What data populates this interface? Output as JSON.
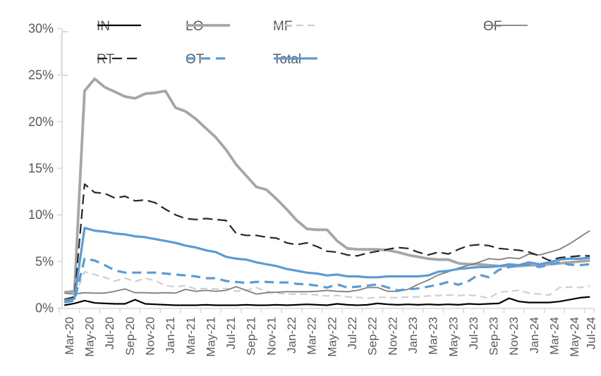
{
  "chart_data": {
    "type": "line",
    "title": "",
    "xlabel": "",
    "ylabel": "",
    "ylim": [
      0,
      30
    ],
    "grid": false,
    "legend_position": "top",
    "axis_color": "#d9d9d9",
    "label_color": "#595959",
    "y_ticks": [
      "0%",
      "5%",
      "10%",
      "15%",
      "20%",
      "25%",
      "30%"
    ],
    "x_tick_labels": [
      "Mar-20",
      "May-20",
      "Jul-20",
      "Sep-20",
      "Nov-20",
      "Jan-21",
      "Mar-21",
      "May-21",
      "Jul-21",
      "Sep-21",
      "Nov-21",
      "Jan-22",
      "Mar-22",
      "May-22",
      "Jul-22",
      "Sep-22",
      "Nov-22",
      "Jan-23",
      "Mar-23",
      "May-23",
      "Jul-23",
      "Sep-23",
      "Nov-23",
      "Jan-24",
      "Mar-24",
      "May-24",
      "Jul-24"
    ],
    "x": [
      "Mar-20",
      "Apr-20",
      "May-20",
      "Jun-20",
      "Jul-20",
      "Aug-20",
      "Sep-20",
      "Oct-20",
      "Nov-20",
      "Dec-20",
      "Jan-21",
      "Feb-21",
      "Mar-21",
      "Apr-21",
      "May-21",
      "Jun-21",
      "Jul-21",
      "Aug-21",
      "Sep-21",
      "Oct-21",
      "Nov-21",
      "Dec-21",
      "Jan-22",
      "Feb-22",
      "Mar-22",
      "Apr-22",
      "May-22",
      "Jun-22",
      "Jul-22",
      "Aug-22",
      "Sep-22",
      "Oct-22",
      "Nov-22",
      "Dec-22",
      "Jan-23",
      "Feb-23",
      "Mar-23",
      "Apr-23",
      "May-23",
      "Jun-23",
      "Jul-23",
      "Aug-23",
      "Sep-23",
      "Oct-23",
      "Nov-23",
      "Dec-23",
      "Jan-24",
      "Feb-24",
      "Mar-24",
      "Apr-24",
      "May-24",
      "Jun-24",
      "Jul-24"
    ],
    "series": [
      {
        "name": "IN",
        "color": "#000000",
        "style": "solid",
        "width": 2.2,
        "dash": "",
        "values": [
          0.3,
          0.5,
          0.8,
          0.55,
          0.5,
          0.45,
          0.45,
          0.9,
          0.45,
          0.4,
          0.35,
          0.3,
          0.3,
          0.3,
          0.35,
          0.3,
          0.3,
          0.3,
          0.35,
          0.3,
          0.3,
          0.35,
          0.3,
          0.35,
          0.4,
          0.35,
          0.3,
          0.45,
          0.35,
          0.3,
          0.35,
          0.5,
          0.4,
          0.35,
          0.4,
          0.35,
          0.4,
          0.35,
          0.4,
          0.35,
          0.45,
          0.4,
          0.45,
          0.5,
          1.05,
          0.7,
          0.6,
          0.6,
          0.6,
          0.7,
          0.9,
          1.1,
          1.2
        ]
      },
      {
        "name": "LO",
        "color": "#a6a6a6",
        "style": "solid",
        "width": 3.8,
        "dash": "",
        "values": [
          1.7,
          1.8,
          23.3,
          24.6,
          23.7,
          23.2,
          22.7,
          22.5,
          23.0,
          23.1,
          23.3,
          21.5,
          21.1,
          20.3,
          19.3,
          18.3,
          17.0,
          15.4,
          14.2,
          13.0,
          12.7,
          11.7,
          10.6,
          9.4,
          8.5,
          8.4,
          8.4,
          7.2,
          6.4,
          6.3,
          6.3,
          6.3,
          6.2,
          6.0,
          5.7,
          5.5,
          5.3,
          5.2,
          5.2,
          4.8,
          4.7,
          4.7,
          4.6,
          4.5,
          4.5,
          4.5,
          4.6,
          4.6,
          4.7,
          4.8,
          4.9,
          5.0,
          5.1
        ]
      },
      {
        "name": "MF",
        "color": "#cfcfcf",
        "style": "dashed",
        "width": 2.2,
        "dash": "10 6",
        "values": [
          1.0,
          1.2,
          3.9,
          3.6,
          3.3,
          2.9,
          3.2,
          2.85,
          3.2,
          2.95,
          2.4,
          2.3,
          2.4,
          2.05,
          2.1,
          2.05,
          2.1,
          1.8,
          1.9,
          2.2,
          1.8,
          1.6,
          1.5,
          1.5,
          1.5,
          1.4,
          1.3,
          1.35,
          1.2,
          1.15,
          1.05,
          1.15,
          1.15,
          1.1,
          1.2,
          1.2,
          1.3,
          1.35,
          1.4,
          1.35,
          1.4,
          1.3,
          1.05,
          1.7,
          1.8,
          1.9,
          1.6,
          1.5,
          1.4,
          2.2,
          2.25,
          2.2,
          2.35
        ]
      },
      {
        "name": "OF",
        "color": "#7f7f7f",
        "style": "solid",
        "width": 1.8,
        "dash": "",
        "values": [
          1.6,
          1.5,
          1.65,
          1.6,
          1.6,
          1.8,
          2.05,
          1.65,
          1.65,
          1.6,
          1.65,
          1.6,
          2.0,
          1.8,
          1.9,
          1.8,
          1.9,
          2.3,
          1.9,
          1.5,
          1.65,
          1.7,
          1.75,
          1.75,
          1.75,
          1.8,
          1.9,
          1.8,
          1.75,
          1.9,
          2.2,
          2.2,
          1.8,
          1.8,
          2.0,
          2.55,
          3.0,
          3.55,
          3.9,
          4.3,
          4.6,
          4.9,
          5.3,
          5.2,
          5.4,
          5.3,
          5.8,
          5.7,
          6.0,
          6.3,
          6.9,
          7.6,
          8.3
        ]
      },
      {
        "name": "RT",
        "color": "#262626",
        "style": "dashed",
        "width": 2.2,
        "dash": "14 7",
        "values": [
          0.9,
          1.2,
          13.3,
          12.4,
          12.3,
          11.8,
          12.0,
          11.5,
          11.6,
          11.3,
          10.6,
          10.0,
          9.6,
          9.5,
          9.6,
          9.5,
          9.4,
          8.0,
          7.8,
          7.8,
          7.6,
          7.5,
          7.0,
          6.8,
          7.0,
          6.6,
          6.1,
          6.0,
          5.7,
          5.6,
          5.9,
          6.1,
          6.3,
          6.5,
          6.4,
          6.0,
          5.7,
          6.0,
          5.8,
          6.3,
          6.7,
          6.8,
          6.7,
          6.4,
          6.3,
          6.2,
          6.0,
          5.6,
          5.1,
          5.4,
          5.5,
          5.6,
          5.6
        ]
      },
      {
        "name": "OT",
        "color": "#5b9bd5",
        "style": "dashed",
        "width": 3.2,
        "dash": "13 8",
        "values": [
          0.6,
          0.8,
          5.3,
          5.1,
          4.6,
          4.05,
          3.8,
          3.8,
          3.8,
          3.8,
          3.7,
          3.6,
          3.5,
          3.4,
          3.2,
          3.2,
          2.9,
          2.8,
          2.7,
          2.8,
          2.8,
          2.75,
          2.75,
          2.6,
          2.55,
          2.4,
          2.2,
          2.55,
          2.2,
          2.3,
          2.4,
          2.55,
          2.2,
          1.9,
          2.0,
          2.1,
          2.3,
          2.5,
          2.8,
          2.5,
          2.9,
          3.6,
          3.3,
          4.1,
          4.4,
          4.55,
          4.65,
          4.4,
          4.65,
          4.9,
          4.65,
          4.6,
          4.7
        ]
      },
      {
        "name": "Total",
        "color": "#5b9bd5",
        "style": "solid",
        "width": 3.2,
        "dash": "",
        "values": [
          0.8,
          1.0,
          8.6,
          8.3,
          8.2,
          8.0,
          7.9,
          7.7,
          7.6,
          7.4,
          7.2,
          7.0,
          6.7,
          6.5,
          6.2,
          6.0,
          5.5,
          5.3,
          5.2,
          4.9,
          4.7,
          4.5,
          4.2,
          4.0,
          3.8,
          3.7,
          3.5,
          3.6,
          3.4,
          3.4,
          3.3,
          3.3,
          3.4,
          3.4,
          3.4,
          3.4,
          3.5,
          3.9,
          4.0,
          4.2,
          4.3,
          4.4,
          4.4,
          4.5,
          4.7,
          4.6,
          4.9,
          4.7,
          4.9,
          5.2,
          5.3,
          5.3,
          5.4
        ]
      }
    ]
  }
}
